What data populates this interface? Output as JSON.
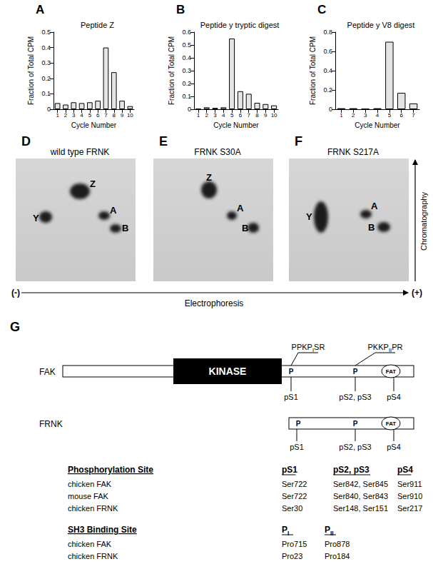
{
  "chart_data": [
    {
      "type": "bar",
      "panel_label": "A",
      "title": "Peptide Z",
      "x_label": "Cycle Number",
      "y_label": "Fraction of Total CPM",
      "categories": [
        "1",
        "2",
        "3",
        "4",
        "5",
        "6",
        "7",
        "8",
        "9",
        "10"
      ],
      "values": [
        0.04,
        0.03,
        0.045,
        0.04,
        0.045,
        0.055,
        0.4,
        0.24,
        0.055,
        0.02
      ],
      "color": "#e4e4e4",
      "ylim": [
        0,
        0.5
      ],
      "yticks": [
        0,
        0.1,
        0.2,
        0.3,
        0.4,
        0.5
      ],
      "grid": false
    },
    {
      "type": "bar",
      "panel_label": "B",
      "title": "Peptide y tryptic digest",
      "x_label": "Cycle Number",
      "y_label": "Fraction of Total CPM",
      "categories": [
        "1",
        "2",
        "3",
        "4",
        "5",
        "6",
        "7",
        "8",
        "9",
        "10"
      ],
      "values": [
        0.005,
        0.015,
        0.01,
        0.015,
        0.55,
        0.14,
        0.12,
        0.05,
        0.04,
        0.03
      ],
      "color": "#e4e4e4",
      "ylim": [
        0,
        0.6
      ],
      "yticks": [
        0,
        0.1,
        0.2,
        0.3,
        0.4,
        0.5,
        0.6
      ],
      "grid": false
    },
    {
      "type": "bar",
      "panel_label": "C",
      "title": "Peptide y V8 digest",
      "x_label": "Cycle Number",
      "y_label": "Fraction of Total CPM",
      "categories": [
        "1",
        "2",
        "3",
        "4",
        "5",
        "6",
        "7"
      ],
      "values": [
        0.01,
        0.01,
        0.005,
        0.01,
        0.7,
        0.17,
        0.06
      ],
      "color": "#e4e4e4",
      "ylim": [
        0,
        0.8
      ],
      "yticks": [
        0,
        0.2,
        0.4,
        0.6,
        0.8
      ],
      "grid": false
    }
  ],
  "maps": [
    {
      "panel_label": "D",
      "title": "wild type FRNK",
      "spots": [
        "Z",
        "Y",
        "A",
        "B"
      ]
    },
    {
      "panel_label": "E",
      "title": "FRNK S30A",
      "spots": [
        "Z",
        "A",
        "B"
      ]
    },
    {
      "panel_label": "F",
      "title": "FRNK S217A",
      "spots": [
        "Y",
        "A",
        "B"
      ]
    }
  ],
  "map_axes": {
    "vertical": "Chromatography",
    "horizontal": "Electrophoresis",
    "negative": "(-)",
    "positive": "(+)"
  },
  "diagram": {
    "panel_label": "G",
    "proteins": [
      {
        "name": "FAK",
        "domains": [
          "KINASE",
          "FAT"
        ],
        "site_marks": [
          "P",
          "P"
        ],
        "site_labels": [
          "pS1",
          "pS2, pS3",
          "pS4"
        ],
        "motifs": [
          {
            "base": "PPKP",
            "sub": "I",
            "after": "SR"
          },
          {
            "base": "PKKP",
            "sub": "II",
            "after": "PR"
          }
        ]
      },
      {
        "name": "FRNK",
        "domains": [
          "FAT"
        ],
        "site_marks": [
          "P",
          "P"
        ],
        "site_labels": [
          "pS1",
          "pS2, pS3",
          "pS4"
        ]
      }
    ],
    "phosphorylation_table": {
      "title": "Phosphorylation Site",
      "columns": [
        "pS1",
        "pS2, pS3",
        "pS4"
      ],
      "rows": [
        {
          "label": "chicken FAK",
          "cells": [
            "Ser722",
            "Ser842, Ser845",
            "Ser911"
          ]
        },
        {
          "label": "mouse FAK",
          "cells": [
            "Ser722",
            "Ser840, Ser843",
            "Ser910"
          ]
        },
        {
          "label": "chicken FRNK",
          "cells": [
            "Ser30",
            "Ser148, Ser151",
            "Ser217"
          ]
        }
      ]
    },
    "sh3_table": {
      "title": "SH3 Binding Site",
      "columns": [
        {
          "base": "P",
          "sub": "I"
        },
        {
          "base": "P",
          "sub": "II"
        }
      ],
      "rows": [
        {
          "label": "chicken FAK",
          "cells": [
            "Pro715",
            "Pro878"
          ]
        },
        {
          "label": "chicken FRNK",
          "cells": [
            "Pro23",
            "Pro184"
          ]
        }
      ]
    }
  }
}
